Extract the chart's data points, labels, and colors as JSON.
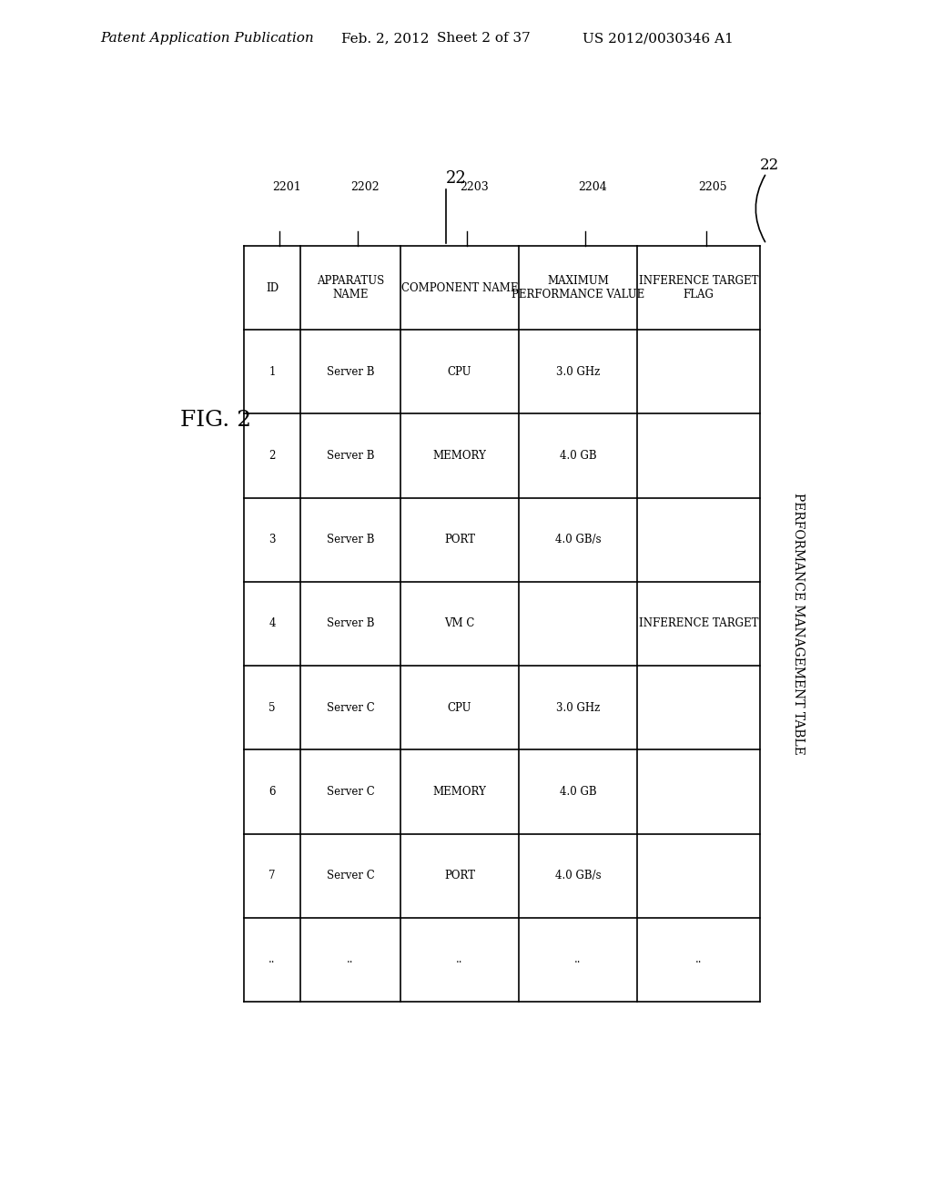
{
  "fig_label": "FIG. 2",
  "header_line1": "Patent Application Publication",
  "header_line2": "Feb. 2, 2012",
  "header_line3": "Sheet 2 of 37",
  "header_line4": "US 2012/0030346 A1",
  "table_title": "PERFORMANCE MANAGEMENT TABLE",
  "reference_num": "22",
  "col_refs": [
    "2201",
    "2202",
    "2203",
    "2204",
    "2205"
  ],
  "col_headers": [
    "ID",
    "APPARATUS\nNAME",
    "COMPONENT NAME",
    "MAXIMUM\nPERFORMANCE VALUE",
    "INFERENCE TARGET\nFLAG"
  ],
  "rows": [
    [
      "1",
      "Server B",
      "CPU",
      "3.0 GHz",
      ""
    ],
    [
      "2",
      "Server B",
      "MEMORY",
      "4.0 GB",
      ""
    ],
    [
      "3",
      "Server B",
      "PORT",
      "4.0 GB/s",
      ""
    ],
    [
      "4",
      "Server B",
      "VM C",
      "",
      "INFERENCE TARGET"
    ],
    [
      "5",
      "Server C",
      "CPU",
      "3.0 GHz",
      ""
    ],
    [
      "6",
      "Server C",
      "MEMORY",
      "4.0 GB",
      ""
    ],
    [
      "7",
      "Server C",
      "PORT",
      "4.0 GB/s",
      ""
    ],
    [
      "..",
      "..",
      "..",
      "..",
      ".."
    ]
  ],
  "bg_color": "#ffffff",
  "text_color": "#000000",
  "line_color": "#000000"
}
